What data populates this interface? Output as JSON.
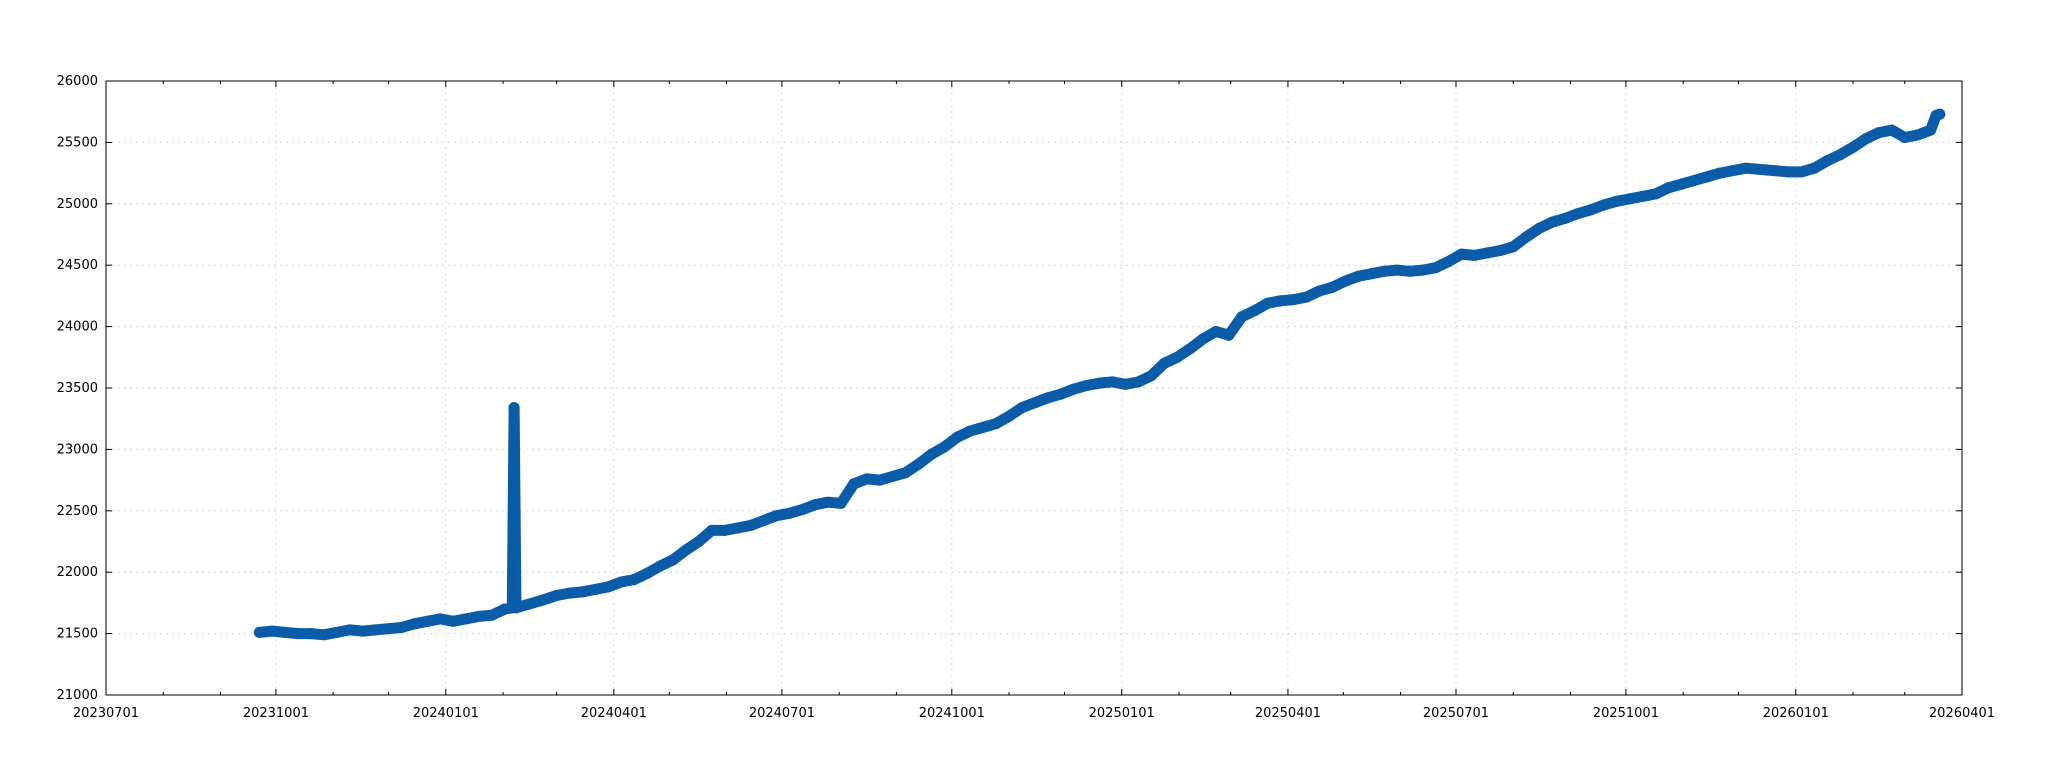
{
  "chart_data": {
    "type": "line",
    "title": "",
    "xlabel": "",
    "ylabel": "",
    "grid": true,
    "legend": "none",
    "line_color": "#0a5ca8",
    "xlim": [
      "2023-07-01",
      "2026-04-01"
    ],
    "ylim": [
      21000,
      26000
    ],
    "y_ticks": [
      21000,
      21500,
      22000,
      22500,
      23000,
      23500,
      24000,
      24500,
      25000,
      25500,
      26000
    ],
    "x_ticks": [
      {
        "date": "2023-07-01",
        "label": "20230701"
      },
      {
        "date": "2023-10-01",
        "label": "20231001"
      },
      {
        "date": "2024-01-01",
        "label": "20240101"
      },
      {
        "date": "2024-04-01",
        "label": "20240401"
      },
      {
        "date": "2024-07-01",
        "label": "20240701"
      },
      {
        "date": "2024-10-01",
        "label": "20241001"
      },
      {
        "date": "2025-01-01",
        "label": "20250101"
      },
      {
        "date": "2025-04-01",
        "label": "20250401"
      },
      {
        "date": "2025-07-01",
        "label": "20250701"
      },
      {
        "date": "2025-10-01",
        "label": "20251001"
      },
      {
        "date": "2026-01-01",
        "label": "20260101"
      },
      {
        "date": "2026-04-01",
        "label": "20260401"
      }
    ],
    "x_minor_ticks": [
      "2023-08-01",
      "2023-09-01",
      "2023-11-01",
      "2023-12-01",
      "2024-02-01",
      "2024-03-01",
      "2024-05-01",
      "2024-06-01",
      "2024-08-01",
      "2024-09-01",
      "2024-11-01",
      "2024-12-01",
      "2025-02-01",
      "2025-03-01",
      "2025-05-01",
      "2025-06-01",
      "2025-08-01",
      "2025-09-01",
      "2025-11-01",
      "2025-12-01",
      "2026-02-01",
      "2026-03-01"
    ],
    "series": [
      {
        "name": "",
        "points": [
          [
            "2023-09-22",
            21510
          ],
          [
            "2023-09-29",
            21520
          ],
          [
            "2023-10-06",
            21510
          ],
          [
            "2023-10-13",
            21500
          ],
          [
            "2023-10-20",
            21500
          ],
          [
            "2023-10-27",
            21490
          ],
          [
            "2023-11-03",
            21510
          ],
          [
            "2023-11-10",
            21530
          ],
          [
            "2023-11-17",
            21520
          ],
          [
            "2023-11-24",
            21530
          ],
          [
            "2023-12-01",
            21540
          ],
          [
            "2023-12-08",
            21550
          ],
          [
            "2023-12-15",
            21580
          ],
          [
            "2023-12-22",
            21600
          ],
          [
            "2023-12-29",
            21620
          ],
          [
            "2024-01-05",
            21600
          ],
          [
            "2024-01-12",
            21620
          ],
          [
            "2024-01-19",
            21640
          ],
          [
            "2024-01-26",
            21650
          ],
          [
            "2024-02-02",
            21700
          ],
          [
            "2024-02-06",
            21710
          ],
          [
            "2024-02-07",
            23340
          ],
          [
            "2024-02-08",
            21710
          ],
          [
            "2024-02-15",
            21740
          ],
          [
            "2024-02-22",
            21770
          ],
          [
            "2024-03-01",
            21810
          ],
          [
            "2024-03-08",
            21830
          ],
          [
            "2024-03-15",
            21840
          ],
          [
            "2024-03-22",
            21860
          ],
          [
            "2024-03-29",
            21880
          ],
          [
            "2024-04-05",
            21920
          ],
          [
            "2024-04-12",
            21940
          ],
          [
            "2024-04-19",
            21990
          ],
          [
            "2024-04-26",
            22050
          ],
          [
            "2024-05-03",
            22100
          ],
          [
            "2024-05-10",
            22180
          ],
          [
            "2024-05-17",
            22250
          ],
          [
            "2024-05-24",
            22340
          ],
          [
            "2024-05-31",
            22340
          ],
          [
            "2024-06-07",
            22360
          ],
          [
            "2024-06-14",
            22380
          ],
          [
            "2024-06-21",
            22420
          ],
          [
            "2024-06-28",
            22460
          ],
          [
            "2024-07-05",
            22480
          ],
          [
            "2024-07-12",
            22510
          ],
          [
            "2024-07-19",
            22550
          ],
          [
            "2024-07-26",
            22570
          ],
          [
            "2024-08-02",
            22560
          ],
          [
            "2024-08-09",
            22720
          ],
          [
            "2024-08-16",
            22760
          ],
          [
            "2024-08-23",
            22750
          ],
          [
            "2024-08-30",
            22780
          ],
          [
            "2024-09-06",
            22810
          ],
          [
            "2024-09-13",
            22880
          ],
          [
            "2024-09-20",
            22960
          ],
          [
            "2024-09-27",
            23020
          ],
          [
            "2024-10-04",
            23100
          ],
          [
            "2024-10-11",
            23150
          ],
          [
            "2024-10-18",
            23180
          ],
          [
            "2024-10-25",
            23210
          ],
          [
            "2024-11-01",
            23270
          ],
          [
            "2024-11-08",
            23340
          ],
          [
            "2024-11-15",
            23380
          ],
          [
            "2024-11-22",
            23420
          ],
          [
            "2024-11-29",
            23450
          ],
          [
            "2024-12-06",
            23490
          ],
          [
            "2024-12-13",
            23520
          ],
          [
            "2024-12-20",
            23540
          ],
          [
            "2024-12-27",
            23550
          ],
          [
            "2025-01-03",
            23530
          ],
          [
            "2025-01-10",
            23550
          ],
          [
            "2025-01-17",
            23600
          ],
          [
            "2025-01-24",
            23700
          ],
          [
            "2025-01-31",
            23750
          ],
          [
            "2025-02-07",
            23820
          ],
          [
            "2025-02-14",
            23900
          ],
          [
            "2025-02-21",
            23960
          ],
          [
            "2025-02-28",
            23930
          ],
          [
            "2025-03-07",
            24080
          ],
          [
            "2025-03-14",
            24130
          ],
          [
            "2025-03-21",
            24190
          ],
          [
            "2025-03-28",
            24210
          ],
          [
            "2025-04-04",
            24220
          ],
          [
            "2025-04-11",
            24240
          ],
          [
            "2025-04-18",
            24290
          ],
          [
            "2025-04-25",
            24320
          ],
          [
            "2025-05-02",
            24370
          ],
          [
            "2025-05-09",
            24410
          ],
          [
            "2025-05-16",
            24430
          ],
          [
            "2025-05-23",
            24450
          ],
          [
            "2025-05-30",
            24460
          ],
          [
            "2025-06-06",
            24450
          ],
          [
            "2025-06-13",
            24460
          ],
          [
            "2025-06-20",
            24480
          ],
          [
            "2025-06-27",
            24530
          ],
          [
            "2025-07-04",
            24590
          ],
          [
            "2025-07-11",
            24580
          ],
          [
            "2025-07-18",
            24600
          ],
          [
            "2025-07-25",
            24620
          ],
          [
            "2025-08-01",
            24650
          ],
          [
            "2025-08-08",
            24730
          ],
          [
            "2025-08-15",
            24800
          ],
          [
            "2025-08-22",
            24850
          ],
          [
            "2025-08-29",
            24880
          ],
          [
            "2025-09-05",
            24920
          ],
          [
            "2025-09-12",
            24950
          ],
          [
            "2025-09-19",
            24990
          ],
          [
            "2025-09-26",
            25020
          ],
          [
            "2025-10-03",
            25040
          ],
          [
            "2025-10-10",
            25060
          ],
          [
            "2025-10-17",
            25080
          ],
          [
            "2025-10-24",
            25130
          ],
          [
            "2025-10-31",
            25160
          ],
          [
            "2025-11-07",
            25190
          ],
          [
            "2025-11-14",
            25220
          ],
          [
            "2025-11-21",
            25250
          ],
          [
            "2025-11-28",
            25270
          ],
          [
            "2025-12-05",
            25290
          ],
          [
            "2025-12-28",
            25260
          ],
          [
            "2026-01-04",
            25260
          ],
          [
            "2026-01-11",
            25290
          ],
          [
            "2026-01-18",
            25350
          ],
          [
            "2026-01-25",
            25400
          ],
          [
            "2026-02-01",
            25460
          ],
          [
            "2026-02-08",
            25530
          ],
          [
            "2026-02-15",
            25580
          ],
          [
            "2026-02-22",
            25600
          ],
          [
            "2026-03-01",
            25540
          ],
          [
            "2026-03-08",
            25560
          ],
          [
            "2026-03-15",
            25600
          ],
          [
            "2026-03-18",
            25720
          ],
          [
            "2026-03-20",
            25730
          ]
        ]
      }
    ]
  }
}
